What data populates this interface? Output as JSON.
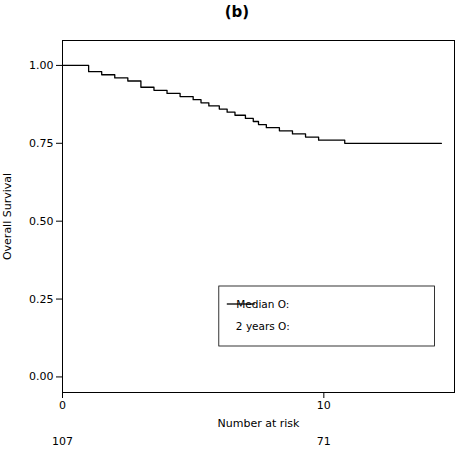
{
  "chart_data": {
    "type": "line",
    "line_style": "step",
    "title": "(b)",
    "ylabel": "Overall Survival",
    "x": [
      0,
      0.5,
      1.0,
      1.5,
      2.0,
      2.5,
      3.0,
      3.5,
      4.0,
      4.5,
      5.0,
      5.3,
      5.6,
      6.0,
      6.3,
      6.6,
      7.0,
      7.3,
      7.5,
      7.8,
      8.0,
      8.3,
      8.5,
      8.8,
      9.0,
      9.3,
      9.5,
      9.8,
      10.0,
      10.3,
      10.5,
      10.8,
      11.0,
      11.3,
      11.5,
      11.8,
      12.0,
      12.5,
      13.0,
      13.5,
      14.0,
      14.5
    ],
    "values": [
      1.0,
      1.0,
      0.98,
      0.97,
      0.96,
      0.95,
      0.93,
      0.92,
      0.91,
      0.9,
      0.89,
      0.88,
      0.87,
      0.86,
      0.85,
      0.84,
      0.83,
      0.82,
      0.81,
      0.8,
      0.8,
      0.79,
      0.79,
      0.78,
      0.78,
      0.77,
      0.77,
      0.76,
      0.76,
      0.76,
      0.76,
      0.75,
      0.75,
      0.75,
      0.75,
      0.75,
      0.75,
      0.75,
      0.75,
      0.75,
      0.75,
      0.75
    ],
    "color": "#000000",
    "xlim": [
      0,
      15
    ],
    "xticks": [
      0,
      10
    ],
    "ylim": [
      -0.05,
      1.08
    ],
    "yticks": [
      {
        "value": 0.0,
        "label": "0.00"
      },
      {
        "value": 0.25,
        "label": "0.25"
      },
      {
        "value": 0.5,
        "label": "0.50"
      },
      {
        "value": 0.75,
        "label": "0.75"
      },
      {
        "value": 1.0,
        "label": "1.00"
      }
    ],
    "grid": false,
    "annotations": [
      "Median O:",
      "2 years O:"
    ],
    "at_risk": {
      "label": "Number at risk",
      "x": [
        0,
        10
      ],
      "values": [
        107,
        71
      ]
    }
  }
}
